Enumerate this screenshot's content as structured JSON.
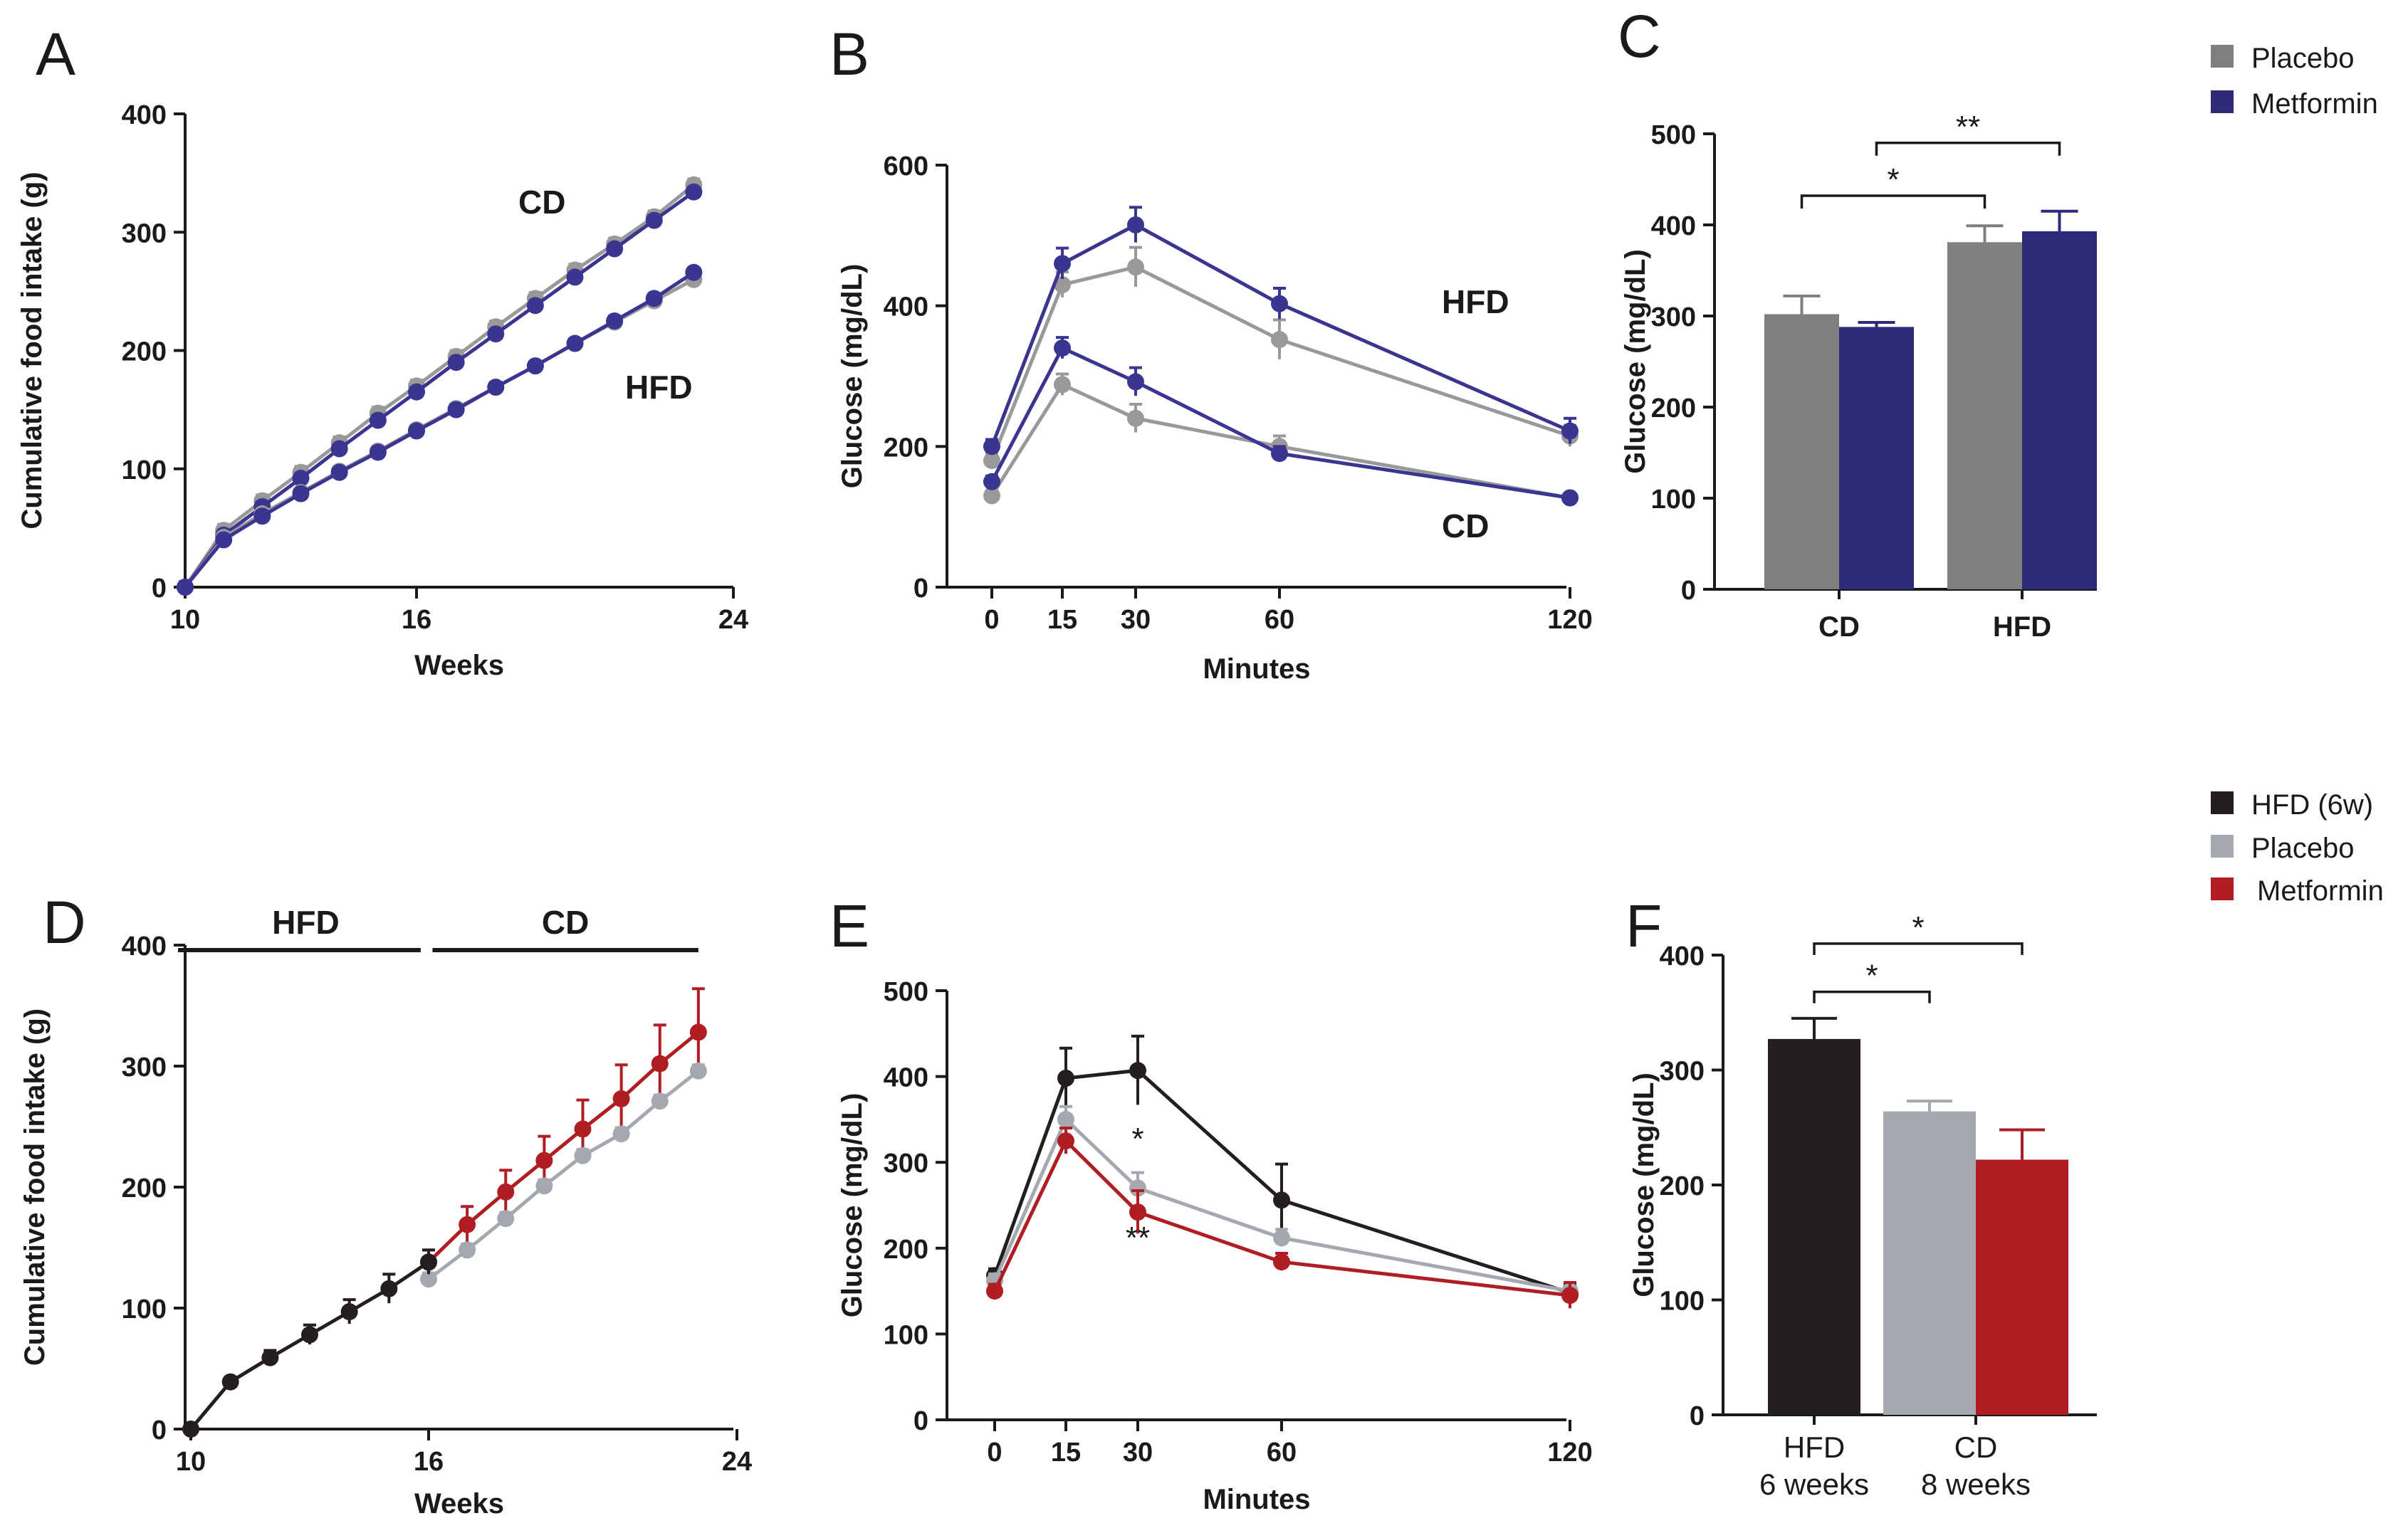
{
  "panels": {
    "A": "A",
    "B": "B",
    "C": "C",
    "D": "D",
    "E": "E",
    "F": "F"
  },
  "legend_top": [
    {
      "label": "Placebo",
      "color": "#7f7f7f"
    },
    {
      "label": "Metformin",
      "color": "#2e2a78"
    }
  ],
  "legend_bottom": [
    {
      "label": "HFD (6w)",
      "color": "#231f20"
    },
    {
      "label": "Placebo",
      "color": "#a3a9ae"
    },
    {
      "label": "Metformin",
      "color": "#b01e24"
    }
  ],
  "chart_data": [
    {
      "id": "A",
      "type": "line",
      "xlabel": "Weeks",
      "ylabel": "Cumulative food intake (g)",
      "xlim": [
        10,
        24
      ],
      "ylim": [
        0,
        400
      ],
      "xticks": [
        10,
        16,
        24
      ],
      "yticks": [
        0,
        100,
        200,
        300,
        400
      ],
      "annotations": [
        "CD",
        "HFD"
      ],
      "x": [
        10,
        11,
        12,
        13,
        14,
        15,
        16,
        17,
        18,
        19,
        20,
        21,
        22,
        23
      ],
      "series": [
        {
          "group": "CD",
          "treatment": "Placebo",
          "color": "#999999",
          "values": [
            0,
            48,
            73,
            97,
            122,
            147,
            170,
            195,
            220,
            244,
            268,
            290,
            313,
            340
          ],
          "err": 5
        },
        {
          "group": "CD",
          "treatment": "Metformin",
          "color": "#3a3590",
          "values": [
            0,
            44,
            68,
            92,
            117,
            141,
            165,
            190,
            214,
            238,
            262,
            286,
            310,
            334
          ],
          "err": 4
        },
        {
          "group": "HFD",
          "treatment": "Placebo",
          "color": "#999999",
          "values": [
            0,
            42,
            62,
            80,
            98,
            115,
            133,
            151,
            169,
            187,
            206,
            224,
            242,
            260
          ],
          "err": 4
        },
        {
          "group": "HFD",
          "treatment": "Metformin",
          "color": "#3a3590",
          "values": [
            0,
            40,
            60,
            79,
            97,
            114,
            132,
            150,
            169,
            187,
            206,
            225,
            244,
            266
          ],
          "err": 4
        }
      ]
    },
    {
      "id": "B",
      "type": "line",
      "xlabel": "Minutes",
      "ylabel": "Glucose (mg/dL)",
      "xlim": [
        0,
        120
      ],
      "ylim": [
        0,
        600
      ],
      "xticks": [
        0,
        15,
        30,
        60,
        120
      ],
      "yticks": [
        0,
        200,
        400,
        600
      ],
      "annotations": [
        "HFD",
        "CD"
      ],
      "x": [
        0,
        15,
        30,
        60,
        120
      ],
      "series": [
        {
          "group": "HFD",
          "treatment": "Placebo",
          "color": "#999999",
          "values": [
            180,
            430,
            455,
            352,
            215
          ],
          "err": [
            10,
            18,
            28,
            28,
            15
          ]
        },
        {
          "group": "HFD",
          "treatment": "Metformin",
          "color": "#3a3590",
          "values": [
            200,
            460,
            515,
            403,
            222
          ],
          "err": [
            10,
            22,
            25,
            22,
            18
          ]
        },
        {
          "group": "CD",
          "treatment": "Placebo",
          "color": "#999999",
          "values": [
            130,
            288,
            240,
            200,
            127
          ],
          "err": [
            8,
            15,
            20,
            15,
            5
          ]
        },
        {
          "group": "CD",
          "treatment": "Metformin",
          "color": "#3a3590",
          "values": [
            150,
            340,
            292,
            190,
            127
          ],
          "err": [
            8,
            15,
            20,
            10,
            5
          ]
        }
      ]
    },
    {
      "id": "C",
      "type": "bar",
      "ylabel": "Glucose (mg/dL)",
      "ylim": [
        0,
        500
      ],
      "yticks": [
        0,
        100,
        200,
        300,
        400,
        500
      ],
      "categories": [
        "CD",
        "HFD"
      ],
      "series": [
        {
          "name": "Placebo",
          "color": "#7f7f7f",
          "values": [
            302,
            381
          ],
          "err": [
            20,
            18
          ]
        },
        {
          "name": "Metformin",
          "color": "#2e2a78",
          "values": [
            288,
            393
          ],
          "err": [
            5,
            22
          ]
        }
      ],
      "significance": [
        {
          "label": "*",
          "from": [
            0,
            0
          ],
          "to": [
            1,
            0
          ],
          "level": 432
        },
        {
          "label": "**",
          "from": [
            0,
            1
          ],
          "to": [
            1,
            1
          ],
          "level": 490
        }
      ]
    },
    {
      "id": "D",
      "type": "line",
      "xlabel": "Weeks",
      "ylabel": "Cumulative food intake (g)",
      "xlim": [
        10,
        24
      ],
      "ylim": [
        0,
        400
      ],
      "xticks": [
        10,
        16,
        24
      ],
      "yticks": [
        0,
        100,
        200,
        300,
        400
      ],
      "periods": [
        {
          "label": "HFD",
          "from": 10,
          "to": 15.8
        },
        {
          "label": "CD",
          "from": 16.1,
          "to": 23
        }
      ],
      "series": [
        {
          "name": "HFD (6w)",
          "color": "#231f20",
          "x": [
            10,
            11,
            12,
            13,
            14,
            15,
            16
          ],
          "values": [
            0,
            39,
            59,
            78,
            97,
            116,
            138
          ],
          "err": [
            0,
            4,
            6,
            8,
            10,
            12,
            10
          ]
        },
        {
          "name": "Placebo",
          "color": "#a3a9ae",
          "x": [
            16,
            17,
            18,
            19,
            20,
            21,
            22,
            23
          ],
          "values": [
            124,
            148,
            174,
            201,
            226,
            244,
            271,
            296
          ],
          "err": [
            5,
            5,
            5,
            5,
            5,
            5,
            5,
            5
          ]
        },
        {
          "name": "Metformin",
          "color": "#b01e24",
          "x": [
            16,
            17,
            18,
            19,
            20,
            21,
            22,
            23
          ],
          "values": [
            138,
            169,
            196,
            222,
            248,
            273,
            302,
            328
          ],
          "err": [
            10,
            15,
            18,
            20,
            24,
            28,
            32,
            36
          ]
        }
      ]
    },
    {
      "id": "E",
      "type": "line",
      "xlabel": "Minutes",
      "ylabel": "Glucose (mg/dL)",
      "xlim": [
        0,
        120
      ],
      "ylim": [
        0,
        500
      ],
      "xticks": [
        0,
        15,
        30,
        60,
        120
      ],
      "yticks": [
        0,
        100,
        200,
        300,
        400,
        500
      ],
      "x": [
        0,
        15,
        30,
        60,
        120
      ],
      "series": [
        {
          "name": "HFD (6w)",
          "color": "#231f20",
          "values": [
            168,
            398,
            407,
            256,
            148
          ],
          "err": [
            8,
            35,
            40,
            42,
            10
          ]
        },
        {
          "name": "Placebo",
          "color": "#a3a9ae",
          "values": [
            162,
            350,
            270,
            212,
            150
          ],
          "err": [
            8,
            15,
            18,
            10,
            10
          ]
        },
        {
          "name": "Metformin",
          "color": "#b01e24",
          "values": [
            150,
            325,
            242,
            184,
            145
          ],
          "err": [
            8,
            15,
            25,
            10,
            15
          ]
        }
      ],
      "significance_marks": [
        {
          "label": "*",
          "x": 30,
          "y": 315
        },
        {
          "label": "**",
          "x": 30,
          "y": 200
        }
      ]
    },
    {
      "id": "F",
      "type": "bar",
      "ylabel": "Glucose (mg/dL)",
      "ylim": [
        0,
        400
      ],
      "yticks": [
        0,
        100,
        200,
        300,
        400
      ],
      "categories": [
        "HFD (6w)",
        "Placebo",
        "Metformin"
      ],
      "group_labels": [
        {
          "line1": "HFD",
          "line2": "6 weeks"
        },
        {
          "line1": "CD",
          "line2": "8 weeks"
        }
      ],
      "values": [
        327,
        264,
        222
      ],
      "err": [
        18,
        9,
        26
      ],
      "colors": [
        "#231f20",
        "#a3a9ae",
        "#b01e24"
      ],
      "significance": [
        {
          "label": "*",
          "from": 0,
          "to": 1,
          "level": 368
        },
        {
          "label": "*",
          "from": 0,
          "to": 2,
          "level": 410
        }
      ]
    }
  ]
}
